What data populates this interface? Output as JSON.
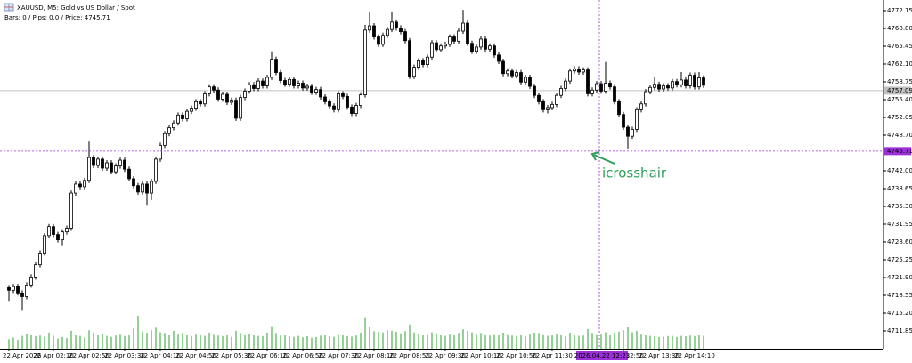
{
  "chart_data": {
    "type": "candlestick",
    "title": "XAUUSD, M5:  Gold vs US Dollar / Spot",
    "info": "Bars: 0 / Pips: 0.0 / Price: 4745.71",
    "annotation": "icrosshair",
    "up_color": "#ffffff",
    "down_color": "#000000",
    "outline_color": "#000000",
    "volume_color": "#2ca02c",
    "crosshair_color": "#9b30d9",
    "grid": false,
    "ylim": [
      4708.5,
      4774.16
    ],
    "yticks": [
      {
        "value": 4772.15,
        "label": "4772.15"
      },
      {
        "value": 4768.8,
        "label": "4768.80"
      },
      4765.45,
      {
        "value": 4762.1,
        "label": "4762.10"
      },
      4758.75,
      {
        "value": 4755.4,
        "label": "4755.40"
      },
      4752.05,
      {
        "value": 4748.7,
        "label": "4748.70"
      },
      {
        "value": 4742,
        "label": "4742.00"
      },
      4738.65,
      {
        "value": 4735.3,
        "label": "4735.30"
      },
      4731.95,
      {
        "value": 4728.6,
        "label": "4728.60"
      },
      4725.25,
      {
        "value": 4721.9,
        "label": "4721.90"
      },
      4718.55,
      {
        "value": 4715.2,
        "label": "4715.20"
      },
      4711.85
    ],
    "bid_price": 4757.09,
    "crosshair": {
      "price": 4745.71,
      "time": "2026.04.22 12:23"
    },
    "categories": [
      "22 Apr 2026",
      null,
      null,
      null,
      null,
      null,
      null,
      null,
      null,
      null,
      "22 Apr 02:10",
      null,
      null,
      null,
      null,
      null,
      null,
      null,
      "22 Apr 02:50",
      null,
      null,
      null,
      null,
      null,
      null,
      null,
      "22 Apr 03:30",
      null,
      null,
      null,
      null,
      null,
      null,
      null,
      "22 Apr 04:10",
      null,
      null,
      null,
      null,
      null,
      null,
      null,
      "22 Apr 04:50",
      null,
      null,
      null,
      null,
      null,
      null,
      null,
      "22 Apr 05:30",
      null,
      null,
      null,
      null,
      null,
      null,
      null,
      "22 Apr 06:10",
      null,
      null,
      null,
      null,
      null,
      null,
      null,
      "22 Apr 06:50",
      null,
      null,
      null,
      null,
      null,
      null,
      null,
      "22 Apr 07:30",
      null,
      null,
      null,
      null,
      null,
      null,
      null,
      "22 Apr 08:10",
      null,
      null,
      null,
      null,
      null,
      null,
      null,
      "22 Apr 08:50",
      null,
      null,
      null,
      null,
      null,
      null,
      null,
      "22 Apr 09:30",
      null,
      null,
      null,
      null,
      null,
      null,
      null,
      "22 Apr 10:10",
      null,
      null,
      null,
      null,
      null,
      null,
      null,
      "22 Apr 10:50",
      null,
      null,
      null,
      null,
      null,
      null,
      null,
      "22 Apr 11:30",
      null,
      null,
      null,
      null,
      null,
      null,
      null,
      null,
      null,
      null,
      null,
      null,
      null,
      null,
      null,
      "22 Apr 12:50",
      null,
      null,
      null,
      null,
      null,
      null,
      null,
      "22 Apr 13:30",
      null,
      null,
      null,
      null,
      null,
      null,
      null,
      "22 Apr 14:10",
      null,
      null
    ],
    "open": [
      4720.0,
      4719.5,
      4720.2,
      4719.0,
      4718.3,
      4720.5,
      4722.0,
      4724.3,
      4726.5,
      4729.8,
      4731.5,
      4730.0,
      4729.0,
      4730.5,
      4731.2,
      4737.8,
      4739.5,
      4739.0,
      4740.2,
      4744.5,
      4743.0,
      4744.2,
      4742.5,
      4743.5,
      4741.8,
      4742.9,
      4744.0,
      4742.3,
      4740.5,
      4739.2,
      4738.0,
      4739.5,
      4737.8,
      4740.0,
      4744.2,
      4746.8,
      4749.0,
      4750.1,
      4751.0,
      4752.5,
      4751.8,
      4753.2,
      4753.8,
      4755.0,
      4754.6,
      4756.5,
      4757.8,
      4757.2,
      4755.5,
      4756.4,
      4754.9,
      4755.3,
      4751.9,
      4755.8,
      4757.0,
      4758.2,
      4757.5,
      4758.9,
      4758.0,
      4759.6,
      4763.0,
      4760.5,
      4759.0,
      4758.3,
      4759.2,
      4758.0,
      4758.5,
      4757.6,
      4757.9,
      4756.8,
      4757.3,
      4755.9,
      4755.0,
      4754.2,
      4753.5,
      4756.5,
      4756.0,
      4754.0,
      4752.8,
      4754.3,
      4756.3,
      4768.5,
      4769.3,
      4767.2,
      4765.8,
      4767.5,
      4768.6,
      4770.0,
      4768.9,
      4768.2,
      4766.5,
      4759.8,
      4761.5,
      4762.7,
      4762.0,
      4763.4,
      4766.1,
      4764.8,
      4765.5,
      4765.8,
      4767.2,
      4766.4,
      4768.3,
      4769.8,
      4766.0,
      4764.5,
      4765.3,
      4766.8,
      4764.9,
      4765.5,
      4763.8,
      4762.6,
      4760.3,
      4760.8,
      4759.9,
      4760.5,
      4758.7,
      4759.6,
      4757.9,
      4756.2,
      4755.0,
      4753.5,
      4753.9,
      4754.5,
      4756.2,
      4757.5,
      4758.9,
      4760.8,
      4761.2,
      4760.6,
      4761.0,
      4756.5,
      4757.2,
      4758.4,
      4757.0,
      4758.5,
      4757.8,
      4755.0,
      4752.6,
      4750.2,
      4748.5,
      4749.8,
      4753.5,
      4754.6,
      4756.9,
      4757.7,
      4758.3,
      4757.4,
      4758.0,
      4757.6,
      4758.8,
      4758.2,
      4759.1,
      4758.0,
      4760.0,
      4757.8,
      4759.5
    ],
    "high": [
      4720.5,
      4720.7,
      4720.7,
      4719.5,
      4721.0,
      4722.5,
      4724.8,
      4727.0,
      4730.3,
      4732.0,
      4732.0,
      4730.5,
      4731.0,
      4731.7,
      4738.3,
      4740.0,
      4740.0,
      4740.7,
      4747.5,
      4745.0,
      4744.7,
      4744.7,
      4744.0,
      4744.0,
      4743.4,
      4744.5,
      4744.5,
      4742.8,
      4741.0,
      4739.7,
      4740.0,
      4740.0,
      4740.5,
      4744.7,
      4747.3,
      4749.5,
      4750.6,
      4751.5,
      4753.0,
      4753.0,
      4753.7,
      4754.3,
      4755.5,
      4755.5,
      4757.0,
      4758.3,
      4758.3,
      4757.7,
      4756.9,
      4756.9,
      4755.8,
      4755.8,
      4756.3,
      4757.5,
      4758.7,
      4758.7,
      4759.4,
      4759.4,
      4760.1,
      4764.5,
      4763.5,
      4761.0,
      4759.5,
      4759.7,
      4759.7,
      4759.0,
      4759.0,
      4758.4,
      4758.4,
      4757.8,
      4757.8,
      4756.4,
      4755.5,
      4754.7,
      4757.0,
      4757.0,
      4756.5,
      4754.5,
      4754.8,
      4756.8,
      4769.5,
      4772.0,
      4769.8,
      4767.7,
      4768.0,
      4769.1,
      4772.0,
      4770.5,
      4769.4,
      4768.7,
      4767.0,
      4762.0,
      4763.2,
      4763.2,
      4763.9,
      4766.6,
      4766.6,
      4766.0,
      4766.3,
      4767.7,
      4767.7,
      4768.8,
      4772.3,
      4770.3,
      4766.5,
      4765.8,
      4767.3,
      4767.3,
      4766.0,
      4766.0,
      4764.3,
      4763.1,
      4761.3,
      4761.3,
      4761.0,
      4761.0,
      4760.1,
      4760.1,
      4758.4,
      4756.7,
      4755.5,
      4754.4,
      4755.0,
      4756.7,
      4758.0,
      4759.4,
      4761.3,
      4761.7,
      4761.7,
      4761.5,
      4761.5,
      4757.7,
      4758.9,
      4758.9,
      4762.5,
      4759.0,
      4758.3,
      4755.5,
      4753.1,
      4750.7,
      4750.3,
      4754.0,
      4755.1,
      4757.4,
      4758.2,
      4759.6,
      4758.8,
      4758.5,
      4758.5,
      4759.3,
      4759.3,
      4760.6,
      4759.6,
      4760.5,
      4760.5,
      4760.6,
      4760.0
    ],
    "low": [
      4717.5,
      4719.0,
      4718.5,
      4715.8,
      4717.8,
      4720.0,
      4721.5,
      4723.8,
      4726.0,
      4729.3,
      4729.5,
      4728.5,
      4728.0,
      4730.0,
      4730.7,
      4737.3,
      4738.5,
      4738.5,
      4739.7,
      4742.5,
      4742.5,
      4742.0,
      4742.0,
      4741.3,
      4741.3,
      4742.4,
      4741.8,
      4740.0,
      4738.7,
      4737.5,
      4737.5,
      4735.6,
      4736.5,
      4739.5,
      4743.7,
      4746.3,
      4748.5,
      4749.6,
      4750.5,
      4751.3,
      4751.3,
      4752.7,
      4753.3,
      4754.1,
      4754.1,
      4756.0,
      4756.7,
      4755.0,
      4755.0,
      4754.4,
      4754.4,
      4751.4,
      4751.4,
      4755.3,
      4756.5,
      4757.0,
      4757.0,
      4757.5,
      4757.5,
      4759.1,
      4760.0,
      4758.5,
      4757.8,
      4757.8,
      4757.5,
      4757.5,
      4757.1,
      4757.1,
      4756.3,
      4756.3,
      4755.4,
      4754.5,
      4753.7,
      4753.0,
      4753.0,
      4755.5,
      4753.5,
      4752.3,
      4752.3,
      4753.8,
      4755.8,
      4768.0,
      4766.7,
      4765.3,
      4765.3,
      4767.0,
      4768.1,
      4768.4,
      4767.7,
      4766.0,
      4759.3,
      4759.3,
      4761.0,
      4761.5,
      4761.5,
      4762.9,
      4764.3,
      4764.3,
      4765.0,
      4765.3,
      4765.9,
      4765.9,
      4767.8,
      4765.5,
      4764.0,
      4764.0,
      4764.8,
      4764.4,
      4764.4,
      4763.3,
      4762.1,
      4759.8,
      4759.8,
      4759.4,
      4759.4,
      4758.2,
      4758.2,
      4757.4,
      4755.7,
      4754.5,
      4753.0,
      4752.8,
      4753.4,
      4754.0,
      4755.7,
      4757.0,
      4758.4,
      4760.3,
      4760.1,
      4760.1,
      4756.0,
      4756.0,
      4756.7,
      4756.5,
      4756.5,
      4757.3,
      4754.5,
      4752.1,
      4749.7,
      4746.2,
      4748.0,
      4749.3,
      4753.0,
      4754.1,
      4756.4,
      4757.2,
      4756.9,
      4756.9,
      4757.1,
      4757.1,
      4757.7,
      4757.7,
      4757.5,
      4757.5,
      4757.3,
      4757.3,
      4757.6
    ],
    "close": [
      4719.5,
      4720.2,
      4719.0,
      4718.3,
      4720.5,
      4722.0,
      4724.3,
      4726.5,
      4729.8,
      4731.5,
      4730.0,
      4729.0,
      4730.5,
      4731.2,
      4737.8,
      4739.5,
      4739.0,
      4740.2,
      4744.5,
      4743.0,
      4744.2,
      4742.5,
      4743.5,
      4741.8,
      4742.9,
      4744.0,
      4742.3,
      4740.5,
      4739.2,
      4738.0,
      4739.5,
      4737.8,
      4740.0,
      4744.2,
      4746.8,
      4749.0,
      4750.1,
      4751.0,
      4752.5,
      4751.8,
      4753.2,
      4753.8,
      4755.0,
      4754.6,
      4756.5,
      4757.8,
      4757.2,
      4755.5,
      4756.4,
      4754.9,
      4755.3,
      4751.9,
      4755.8,
      4757.0,
      4758.2,
      4757.5,
      4758.9,
      4758.0,
      4759.6,
      4763.0,
      4760.5,
      4759.0,
      4758.3,
      4759.2,
      4758.0,
      4758.5,
      4757.6,
      4757.9,
      4756.8,
      4757.3,
      4755.9,
      4755.0,
      4754.2,
      4753.5,
      4756.5,
      4756.0,
      4754.0,
      4752.8,
      4754.3,
      4756.3,
      4768.5,
      4769.3,
      4767.2,
      4765.8,
      4767.5,
      4768.6,
      4770.0,
      4768.9,
      4768.2,
      4766.5,
      4759.8,
      4761.5,
      4762.7,
      4762.0,
      4763.4,
      4766.1,
      4764.8,
      4765.5,
      4765.8,
      4767.2,
      4766.4,
      4768.3,
      4769.8,
      4766.0,
      4764.5,
      4765.3,
      4766.8,
      4764.9,
      4765.5,
      4763.8,
      4762.6,
      4760.3,
      4760.8,
      4759.9,
      4760.5,
      4758.7,
      4759.6,
      4757.9,
      4756.2,
      4755.0,
      4753.5,
      4753.9,
      4754.5,
      4756.2,
      4757.5,
      4758.9,
      4760.8,
      4761.2,
      4760.6,
      4761.0,
      4756.5,
      4757.2,
      4758.4,
      4757.0,
      4758.5,
      4757.8,
      4755.0,
      4752.6,
      4750.2,
      4748.5,
      4749.8,
      4753.5,
      4754.6,
      4756.9,
      4757.7,
      4758.3,
      4757.4,
      4758.0,
      4757.6,
      4758.8,
      4758.2,
      4759.1,
      4758.0,
      4760.0,
      4757.8,
      4759.5,
      4758.1
    ],
    "volume": [
      520,
      610,
      480,
      700,
      830,
      760,
      690,
      720,
      650,
      880,
      710,
      560,
      640,
      590,
      980,
      760,
      700,
      620,
      1010,
      890,
      760,
      830,
      700,
      650,
      720,
      810,
      690,
      760,
      1120,
      1800,
      940,
      870,
      1010,
      1150,
      900,
      860,
      760,
      980,
      820,
      870,
      740,
      690,
      820,
      760,
      700,
      880,
      800,
      720,
      690,
      760,
      650,
      980,
      860,
      770,
      830,
      740,
      700,
      690,
      880,
      1240,
      860,
      720,
      760,
      690,
      650,
      700,
      620,
      680,
      600,
      640,
      710,
      760,
      690,
      650,
      800,
      740,
      690,
      660,
      720,
      880,
      1720,
      1180,
      960,
      920,
      890,
      1010,
      980,
      920,
      840,
      960,
      1320,
      880,
      820,
      760,
      790,
      900,
      840,
      760,
      700,
      820,
      780,
      860,
      1060,
      980,
      900,
      820,
      860,
      780,
      720,
      800,
      760,
      880,
      790,
      720,
      700,
      760,
      690,
      820,
      880,
      860,
      790,
      700,
      760,
      820,
      740,
      690,
      880,
      760,
      700,
      720,
      1080,
      860,
      790,
      820,
      900,
      760,
      890,
      940,
      1020,
      1180,
      900,
      980,
      820,
      760,
      700,
      680,
      640,
      660,
      690,
      700,
      640,
      700,
      680,
      720,
      690,
      760,
      700
    ]
  }
}
